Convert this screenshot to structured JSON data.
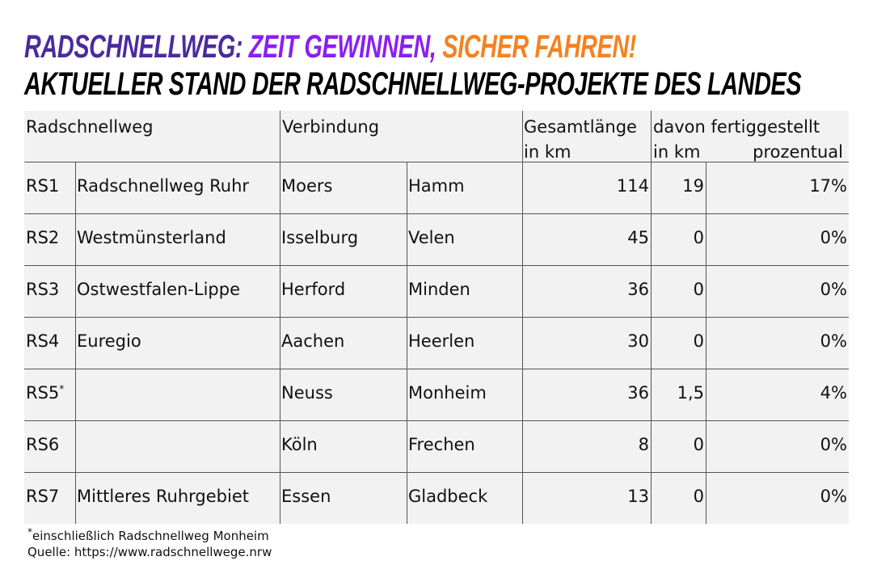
{
  "header": {
    "title_parts": [
      "RADSCHNELLWEG:",
      "ZEIT GEWINNEN,",
      "SICHER FAHREN!"
    ],
    "subtitle": "AKTUELLER STAND DER RADSCHNELLWEG-PROJEKTE DES LANDES"
  },
  "table": {
    "header": {
      "radschnellweg": "Radschnellweg",
      "verbindung": "Verbindung",
      "gesamtlaenge": "Gesamtlänge",
      "gesamtlaenge_unit": "in km",
      "fertig": "davon fertiggestellt",
      "fertig_unit": "in km",
      "fertig_percent": "prozentual"
    },
    "rows": [
      [
        "RS1",
        "Radschnellweg Ruhr",
        "Moers",
        "Hamm",
        "114",
        "19",
        "17%"
      ],
      [
        "RS2",
        "Westmünsterland",
        "Isselburg",
        "Velen",
        "45",
        "0",
        "0%"
      ],
      [
        "RS3",
        "Ostwestfalen-Lippe",
        "Herford",
        "Minden",
        "36",
        "0",
        "0%"
      ],
      [
        "RS4",
        "Euregio",
        "Aachen",
        "Heerlen",
        "30",
        "0",
        "0%"
      ],
      [
        "RS5",
        "",
        "Neuss",
        "Monheim",
        "36",
        "1,5",
        "4%"
      ],
      [
        "RS6",
        "",
        "Köln",
        "Frechen",
        "8",
        "0",
        "0%"
      ],
      [
        "RS7",
        "Mittleres Ruhrgebiet",
        "Essen",
        "Gladbeck",
        "13",
        "0",
        "0%"
      ]
    ],
    "note_row": 4,
    "note_marker": "*"
  },
  "footnote": {
    "marker": "*",
    "text": "einschließlich Radschnellweg Monheim",
    "source": "Quelle: https://www.radschnellwege.nrw"
  }
}
